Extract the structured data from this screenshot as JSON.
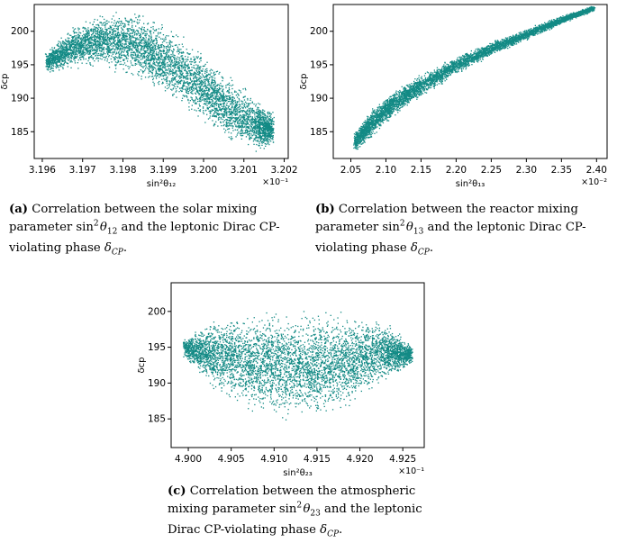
{
  "colors": {
    "points": "#138a85",
    "frame": "#000000",
    "text": "#000000"
  },
  "chart_data": [
    {
      "type": "scatter",
      "panel_label": "(a)",
      "caption_html": "Correlation between the solar mixing parameter sin<sup>2</sup>&#8202;<i>θ</i><sub>12</sub> and the leptonic Dirac CP-violating phase <i>δ</i><sub><i>CP</i></sub>.",
      "xlabel": "sin²θ₁₂",
      "ylabel": "δcp",
      "x_multiplier": "×10⁻¹",
      "xlim": [
        3.1958,
        3.2021
      ],
      "ylim": [
        181,
        204
      ],
      "x_ticks": [
        "3.196",
        "3.197",
        "3.198",
        "3.199",
        "3.200",
        "3.201",
        "3.202"
      ],
      "y_ticks": [
        "185",
        "190",
        "195",
        "200"
      ],
      "grid": false,
      "scatter_shape": {
        "spine": [
          [
            3.1961,
            195.5
          ],
          [
            3.1968,
            197.8
          ],
          [
            3.1975,
            198.8
          ],
          [
            3.1983,
            198.2
          ],
          [
            3.199,
            195.8
          ],
          [
            3.1998,
            192.5
          ],
          [
            3.2005,
            189.0
          ],
          [
            3.2013,
            186.0
          ],
          [
            3.2017,
            185.5
          ]
        ],
        "half_width": [
          1.8,
          3.5,
          4.5,
          5.5,
          6.0,
          6.0,
          5.5,
          4.5,
          3.0
        ],
        "points": 5200
      }
    },
    {
      "type": "scatter",
      "panel_label": "(b)",
      "caption_html": "Correlation between the reactor mixing parameter sin<sup>2</sup>&#8202;<i>θ</i><sub>13</sub> and the leptonic Dirac CP-violating phase <i>δ</i><sub><i>CP</i></sub>.",
      "xlabel": "sin²θ₁₃",
      "ylabel": "δcp",
      "x_multiplier": "×10⁻²",
      "xlim": [
        2.025,
        2.415
      ],
      "ylim": [
        181,
        204
      ],
      "x_ticks": [
        "2.05",
        "2.10",
        "2.15",
        "2.20",
        "2.25",
        "2.30",
        "2.35",
        "2.40"
      ],
      "y_ticks": [
        "185",
        "190",
        "195",
        "200"
      ],
      "grid": false,
      "scatter_shape": {
        "spine": [
          [
            2.055,
            183.5
          ],
          [
            2.08,
            186.5
          ],
          [
            2.11,
            189.2
          ],
          [
            2.15,
            192.0
          ],
          [
            2.2,
            195.0
          ],
          [
            2.25,
            197.5
          ],
          [
            2.3,
            199.6
          ],
          [
            2.35,
            201.8
          ],
          [
            2.395,
            203.5
          ]
        ],
        "half_width": [
          1.8,
          2.2,
          2.0,
          1.8,
          1.5,
          1.2,
          0.9,
          0.7,
          0.4
        ],
        "points": 5200
      }
    },
    {
      "type": "scatter",
      "panel_label": "(c)",
      "caption_html": "Correlation between the atmospheric mixing parameter sin<sup>2</sup>&#8202;<i>θ</i><sub>23</sub> and the leptonic Dirac CP-violating phase <i>δ</i><sub><i>CP</i></sub>.",
      "xlabel": "sin²θ₂₃",
      "ylabel": "δcp",
      "x_multiplier": "×10⁻¹",
      "xlim": [
        4.898,
        4.9275
      ],
      "ylim": [
        181,
        204
      ],
      "x_ticks": [
        "4.900",
        "4.905",
        "4.910",
        "4.915",
        "4.920",
        "4.925"
      ],
      "y_ticks": [
        "185",
        "190",
        "195",
        "200"
      ],
      "grid": false,
      "scatter_shape": {
        "spine": [
          [
            4.8995,
            195.0
          ],
          [
            4.903,
            194.0
          ],
          [
            4.907,
            193.0
          ],
          [
            4.911,
            192.5
          ],
          [
            4.915,
            192.5
          ],
          [
            4.919,
            193.0
          ],
          [
            4.923,
            194.5
          ],
          [
            4.926,
            194.0
          ]
        ],
        "half_width": [
          1.5,
          5.5,
          7.5,
          8.5,
          8.5,
          7.0,
          4.5,
          1.5
        ],
        "points": 5200
      }
    }
  ]
}
